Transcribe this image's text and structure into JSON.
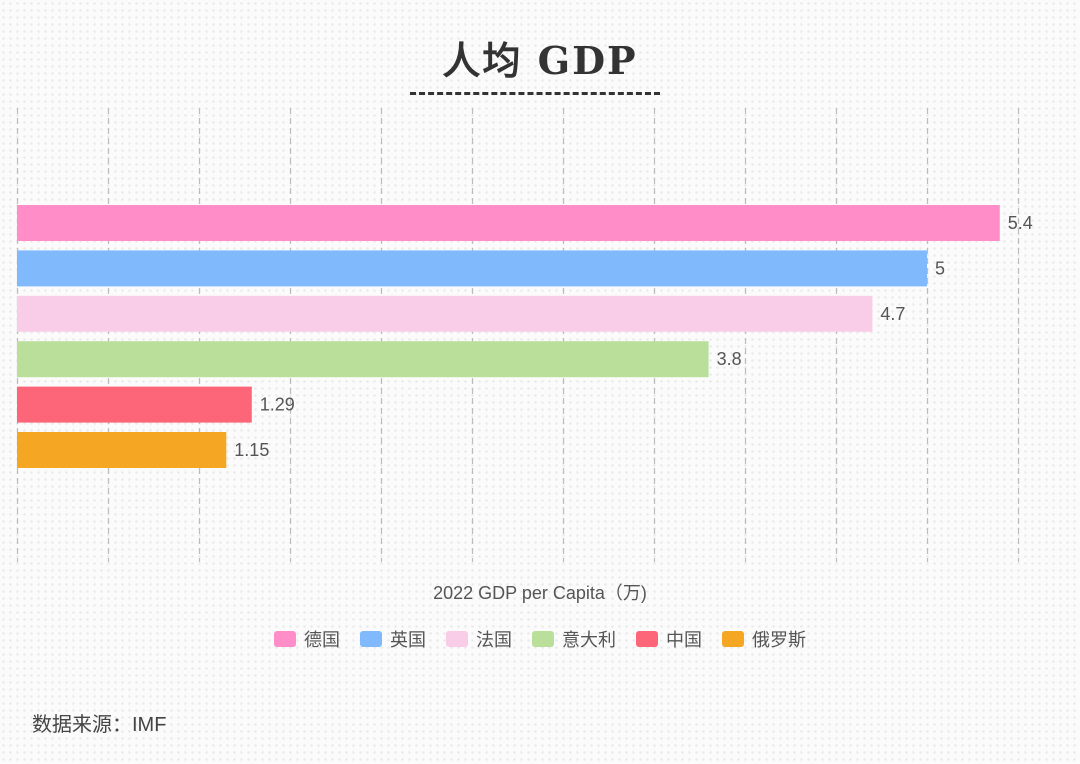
{
  "chart_data": {
    "type": "bar",
    "orientation": "horizontal",
    "title": "人均 GDP",
    "xlabel": "2022 GDP per Capita（万)",
    "ylabel": "",
    "xlim": [
      0,
      5.5
    ],
    "grid": true,
    "categories": [
      "德国",
      "英国",
      "法国",
      "意大利",
      "中国",
      "俄罗斯"
    ],
    "values": [
      5.4,
      5,
      4.7,
      3.8,
      1.29,
      1.15
    ],
    "value_labels": [
      "5.4",
      "5",
      "4.7",
      "3.8",
      "1.29",
      "1.15"
    ],
    "colors": [
      "#ff8ec8",
      "#80b9fc",
      "#f9cde7",
      "#badf9a",
      "#fd6578",
      "#f5a623"
    ],
    "legend_position": "bottom"
  },
  "legend": [
    {
      "label": "德国",
      "color": "#ff8ec8"
    },
    {
      "label": "英国",
      "color": "#80b9fc"
    },
    {
      "label": "法国",
      "color": "#f9cde7"
    },
    {
      "label": "意大利",
      "color": "#badf9a"
    },
    {
      "label": "中国",
      "color": "#fd6578"
    },
    {
      "label": "俄罗斯",
      "color": "#f5a623"
    }
  ],
  "source": "数据来源：IMF"
}
